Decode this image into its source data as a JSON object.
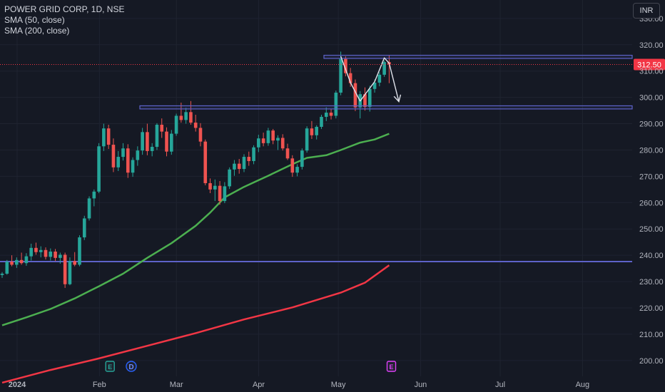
{
  "legend": {
    "symbol": "POWER GRID CORP, 1D, NSE",
    "sma1": "SMA (50, close)",
    "sma2": "SMA (200, close)"
  },
  "currency_button": "INR",
  "colors": {
    "background": "#151924",
    "grid": "#1f2330",
    "up": "#26a69a",
    "down": "#ef5350",
    "sma50": "#4caf50",
    "sma200": "#f23645",
    "zone": "#5d62c8",
    "price_line": "#f23645",
    "text": "#d1d4dc",
    "axis_text": "#b2b5be"
  },
  "events": [
    {
      "label": "E",
      "kind": "earnings",
      "date": "2024-02-05"
    },
    {
      "label": "D",
      "kind": "dividend",
      "date": "2024-02-13"
    },
    {
      "label": "E",
      "kind": "earnings",
      "date": "2024-05-21"
    }
  ],
  "chart_data": {
    "type": "candlestick",
    "title": "POWER GRID CORP, 1D, NSE",
    "ylim": [
      194,
      337
    ],
    "yticks": [
      200,
      210,
      220,
      230,
      240,
      250,
      260,
      270,
      280,
      290,
      300,
      310,
      320,
      330
    ],
    "ytick_labels": [
      "200.00",
      "210.00",
      "220.00",
      "230.00",
      "240.00",
      "250.00",
      "260.00",
      "270.00",
      "280.00",
      "290.00",
      "300.00",
      "310.00",
      "320.00",
      "330.00"
    ],
    "x_axis_labels": [
      {
        "label": "2024",
        "date": "2024-01-01"
      },
      {
        "label": "Feb",
        "date": "2024-02-01"
      },
      {
        "label": "Mar",
        "date": "2024-03-01"
      },
      {
        "label": "Apr",
        "date": "2024-04-01"
      },
      {
        "label": "May",
        "date": "2024-05-01"
      },
      {
        "label": "Jun",
        "date": "2024-06-01"
      },
      {
        "label": "Jul",
        "date": "2024-07-01"
      },
      {
        "label": "Aug",
        "date": "2024-08-01"
      }
    ],
    "last_price": 312.5,
    "last_price_label": "312.50",
    "candles": [
      [
        232.5,
        233.6,
        231.4,
        233.0
      ],
      [
        233.0,
        238.2,
        232.6,
        237.6
      ],
      [
        237.6,
        240.0,
        235.8,
        236.4
      ],
      [
        236.4,
        239.2,
        235.2,
        238.2
      ],
      [
        238.2,
        241.0,
        236.4,
        237.0
      ],
      [
        237.0,
        240.8,
        236.0,
        239.6
      ],
      [
        239.6,
        244.4,
        238.0,
        242.8
      ],
      [
        242.8,
        244.8,
        240.2,
        241.2
      ],
      [
        241.2,
        243.4,
        239.2,
        242.0
      ],
      [
        242.0,
        243.0,
        238.4,
        239.4
      ],
      [
        239.4,
        242.6,
        238.0,
        241.4
      ],
      [
        241.4,
        242.4,
        237.8,
        239.0
      ],
      [
        239.0,
        241.0,
        236.8,
        240.2
      ],
      [
        240.2,
        241.0,
        227.6,
        229.0
      ],
      [
        229.0,
        239.2,
        228.6,
        237.8
      ],
      [
        237.8,
        241.2,
        235.8,
        236.4
      ],
      [
        236.4,
        247.6,
        235.8,
        246.8
      ],
      [
        246.8,
        255.0,
        245.8,
        254.0
      ],
      [
        254.0,
        262.4,
        253.2,
        261.6
      ],
      [
        261.6,
        265.0,
        258.6,
        264.2
      ],
      [
        264.2,
        282.6,
        263.6,
        281.4
      ],
      [
        281.4,
        290.0,
        279.6,
        288.2
      ],
      [
        288.2,
        289.6,
        280.4,
        282.0
      ],
      [
        282.0,
        284.4,
        271.6,
        273.4
      ],
      [
        273.4,
        279.6,
        272.0,
        277.4
      ],
      [
        277.4,
        282.6,
        276.0,
        280.6
      ],
      [
        280.6,
        282.2,
        269.4,
        271.4
      ],
      [
        271.4,
        277.2,
        269.8,
        276.2
      ],
      [
        276.2,
        281.4,
        274.0,
        279.8
      ],
      [
        279.8,
        288.4,
        278.2,
        286.8
      ],
      [
        286.8,
        290.0,
        278.0,
        279.6
      ],
      [
        279.6,
        282.6,
        277.6,
        281.2
      ],
      [
        281.2,
        290.2,
        280.0,
        289.6
      ],
      [
        289.6,
        292.0,
        284.6,
        287.0
      ],
      [
        287.0,
        288.6,
        277.6,
        279.4
      ],
      [
        279.4,
        287.6,
        278.2,
        286.2
      ],
      [
        286.2,
        293.8,
        285.4,
        293.0
      ],
      [
        293.0,
        298.0,
        290.4,
        291.4
      ],
      [
        291.4,
        296.0,
        290.0,
        294.4
      ],
      [
        294.4,
        298.6,
        289.6,
        290.4
      ],
      [
        290.4,
        293.4,
        287.0,
        288.4
      ],
      [
        288.4,
        290.2,
        281.4,
        283.2
      ],
      [
        283.2,
        284.0,
        266.6,
        267.4
      ],
      [
        267.4,
        269.2,
        263.6,
        265.0
      ],
      [
        265.0,
        268.8,
        260.6,
        266.4
      ],
      [
        266.4,
        268.2,
        259.2,
        260.6
      ],
      [
        260.6,
        267.8,
        259.8,
        266.2
      ],
      [
        266.2,
        273.4,
        265.2,
        272.6
      ],
      [
        272.6,
        276.2,
        270.2,
        274.8
      ],
      [
        274.8,
        276.6,
        271.0,
        272.8
      ],
      [
        272.8,
        278.4,
        271.6,
        277.4
      ],
      [
        277.4,
        279.4,
        274.0,
        275.8
      ],
      [
        275.8,
        281.8,
        274.6,
        281.0
      ],
      [
        281.0,
        285.8,
        279.2,
        284.4
      ],
      [
        284.4,
        286.6,
        281.4,
        282.6
      ],
      [
        282.6,
        288.4,
        281.6,
        287.4
      ],
      [
        287.4,
        288.0,
        282.2,
        283.6
      ],
      [
        283.6,
        285.6,
        280.0,
        284.6
      ],
      [
        284.6,
        286.0,
        279.8,
        280.6
      ],
      [
        280.6,
        282.4,
        276.2,
        276.8
      ],
      [
        276.8,
        278.0,
        269.8,
        271.4
      ],
      [
        271.4,
        274.6,
        270.0,
        273.6
      ],
      [
        273.6,
        280.6,
        272.6,
        279.8
      ],
      [
        279.8,
        289.0,
        279.0,
        288.2
      ],
      [
        288.2,
        291.0,
        284.2,
        285.6
      ],
      [
        285.6,
        289.4,
        284.0,
        288.8
      ],
      [
        288.8,
        293.4,
        288.0,
        292.6
      ],
      [
        292.6,
        296.2,
        291.0,
        294.2
      ],
      [
        294.2,
        295.6,
        291.6,
        293.0
      ],
      [
        293.0,
        302.6,
        292.0,
        301.8
      ],
      [
        301.8,
        317.4,
        300.8,
        314.6
      ],
      [
        314.6,
        315.6,
        308.0,
        309.2
      ],
      [
        309.2,
        311.2,
        304.0,
        305.4
      ],
      [
        305.4,
        306.8,
        294.8,
        296.2
      ],
      [
        296.2,
        302.4,
        292.0,
        301.2
      ],
      [
        301.2,
        303.8,
        295.0,
        296.4
      ],
      [
        296.4,
        304.4,
        294.6,
        303.2
      ],
      [
        303.2,
        306.8,
        301.8,
        305.6
      ],
      [
        305.6,
        309.6,
        304.2,
        308.6
      ],
      [
        308.6,
        314.0,
        307.8,
        313.4
      ],
      [
        313.4,
        316.0,
        305.4,
        312.5
      ]
    ],
    "series": [
      {
        "name": "SMA (50, close)",
        "points": [
          [
            0,
            213.4
          ],
          [
            5,
            216.4
          ],
          [
            10,
            219.6
          ],
          [
            15,
            223.6
          ],
          [
            20,
            228.2
          ],
          [
            25,
            233.0
          ],
          [
            30,
            239.0
          ],
          [
            35,
            244.6
          ],
          [
            40,
            251.2
          ],
          [
            43,
            256.2
          ],
          [
            46,
            262.0
          ],
          [
            50,
            266.0
          ],
          [
            55,
            270.2
          ],
          [
            60,
            274.6
          ],
          [
            63,
            277.0
          ],
          [
            67,
            278.0
          ],
          [
            70,
            280.0
          ],
          [
            74,
            282.8
          ],
          [
            77,
            284.0
          ],
          [
            80,
            286.2
          ]
        ]
      },
      {
        "name": "SMA (200, close)",
        "points": [
          [
            0,
            191.6
          ],
          [
            10,
            196.4
          ],
          [
            20,
            200.8
          ],
          [
            30,
            205.6
          ],
          [
            40,
            210.4
          ],
          [
            50,
            215.6
          ],
          [
            60,
            220.2
          ],
          [
            70,
            225.8
          ],
          [
            75,
            229.6
          ],
          [
            80,
            236.2
          ]
        ]
      }
    ],
    "drawings": {
      "hlines": [
        237.6
      ],
      "zones": [
        [
          295.6,
          296.8
        ],
        [
          314.8,
          316.0
        ]
      ],
      "zigzag": [
        [
          70,
          315.6
        ],
        [
          72,
          305.6
        ],
        [
          74,
          298.6
        ],
        [
          77,
          306.0
        ],
        [
          79,
          315.0
        ],
        [
          80,
          313.0
        ],
        [
          82,
          298.4
        ]
      ]
    }
  }
}
